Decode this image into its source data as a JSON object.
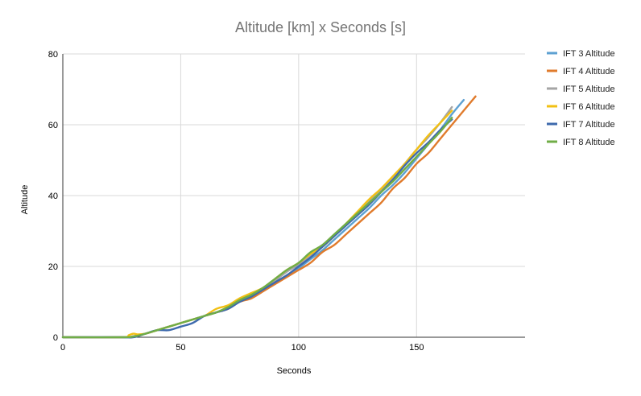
{
  "chart_data": {
    "type": "line",
    "title": "Altitude [km] x Seconds [s]",
    "xlabel": "Seconds",
    "ylabel": "Altitude",
    "xlim": [
      0,
      196
    ],
    "ylim": [
      0,
      80
    ],
    "xticks": [
      0,
      50,
      100,
      150
    ],
    "yticks": [
      0,
      20,
      40,
      60,
      80
    ],
    "grid": true,
    "legend_position": "right",
    "series": [
      {
        "name": "IFT 3 Altitude",
        "color": "#5ea1d2",
        "x": [
          0,
          25,
          30,
          35,
          40,
          45,
          50,
          55,
          60,
          65,
          70,
          75,
          80,
          85,
          90,
          95,
          100,
          105,
          110,
          115,
          120,
          125,
          130,
          135,
          140,
          145,
          150,
          155,
          160,
          165,
          170
        ],
        "y": [
          0,
          0,
          0.2,
          1,
          2,
          3,
          4,
          5,
          6,
          7,
          8,
          10,
          11.5,
          13.5,
          15.5,
          17.5,
          19.5,
          22,
          24.5,
          27.5,
          30.5,
          33.5,
          36.5,
          40,
          43,
          46.5,
          50.5,
          54.5,
          58.5,
          63,
          67
        ]
      },
      {
        "name": "IFT 4 Altitude",
        "color": "#e07b2c",
        "x": [
          0,
          25,
          30,
          35,
          40,
          45,
          50,
          55,
          60,
          65,
          70,
          75,
          80,
          85,
          90,
          95,
          100,
          105,
          110,
          115,
          120,
          125,
          130,
          135,
          140,
          145,
          150,
          155,
          160,
          165,
          170,
          175
        ],
        "y": [
          0,
          0,
          0.3,
          1,
          2,
          3,
          4,
          5,
          6,
          7,
          8,
          10,
          11,
          13,
          15,
          17,
          19,
          21,
          24,
          26,
          29,
          32,
          35,
          38,
          42,
          45,
          49,
          52,
          56,
          60,
          64,
          68
        ]
      },
      {
        "name": "IFT 5 Altitude",
        "color": "#a5a5a5",
        "x": [
          0,
          25,
          30,
          35,
          40,
          45,
          50,
          55,
          60,
          65,
          70,
          75,
          80,
          85,
          90,
          95,
          100,
          105,
          110,
          115,
          120,
          125,
          130,
          135,
          140,
          145,
          150,
          155,
          160,
          165
        ],
        "y": [
          0,
          0,
          0.3,
          1,
          2,
          3,
          4,
          5,
          6,
          7,
          8.5,
          10.5,
          12,
          14,
          16,
          18.5,
          20.5,
          23,
          25.5,
          28.5,
          31.5,
          35,
          38.5,
          41.5,
          45,
          49,
          53,
          56.5,
          60.5,
          65
        ]
      },
      {
        "name": "IFT 6 Altitude",
        "color": "#f2c014",
        "x": [
          0,
          25,
          28,
          30,
          32,
          35,
          40,
          45,
          50,
          55,
          60,
          65,
          70,
          75,
          80,
          85,
          90,
          95,
          100,
          105,
          110,
          115,
          120,
          125,
          130,
          135,
          140,
          145,
          150,
          155,
          160,
          165
        ],
        "y": [
          0,
          0,
          0.6,
          1,
          0.8,
          1,
          2,
          3,
          4,
          5,
          6,
          8,
          9,
          11,
          12.5,
          14,
          16.5,
          19,
          21,
          23.5,
          25.5,
          28.5,
          32,
          35.5,
          39,
          42,
          45.5,
          49,
          53,
          57,
          60.5,
          64
        ]
      },
      {
        "name": "IFT 7 Altitude",
        "color": "#3e6aad",
        "x": [
          0,
          25,
          30,
          35,
          40,
          45,
          50,
          55,
          60,
          65,
          70,
          75,
          80,
          85,
          90,
          95,
          100,
          105,
          110,
          115,
          120,
          125,
          130,
          135,
          140,
          145,
          150,
          155,
          160,
          165
        ],
        "y": [
          0,
          0,
          0,
          1,
          2,
          2,
          3,
          4,
          6,
          7,
          8,
          10,
          11.5,
          13.5,
          15.5,
          17.5,
          20,
          22.5,
          25.5,
          28.5,
          31.5,
          34.5,
          37.5,
          41,
          44.5,
          48.5,
          52,
          55,
          58.5,
          61.5
        ]
      },
      {
        "name": "IFT 8 Altitude",
        "color": "#70ad47",
        "x": [
          0,
          25,
          30,
          35,
          40,
          45,
          50,
          55,
          60,
          65,
          70,
          75,
          80,
          85,
          90,
          95,
          100,
          105,
          110,
          115,
          120,
          125,
          130,
          135,
          140,
          145,
          150,
          155,
          160,
          165
        ],
        "y": [
          0,
          0,
          0.2,
          1,
          2,
          3,
          4,
          5,
          6,
          7,
          8.5,
          10.5,
          12,
          14,
          16.5,
          19,
          21,
          24,
          26,
          29,
          32,
          35,
          38,
          41,
          44,
          47.5,
          51,
          54.5,
          58,
          62
        ]
      }
    ]
  }
}
